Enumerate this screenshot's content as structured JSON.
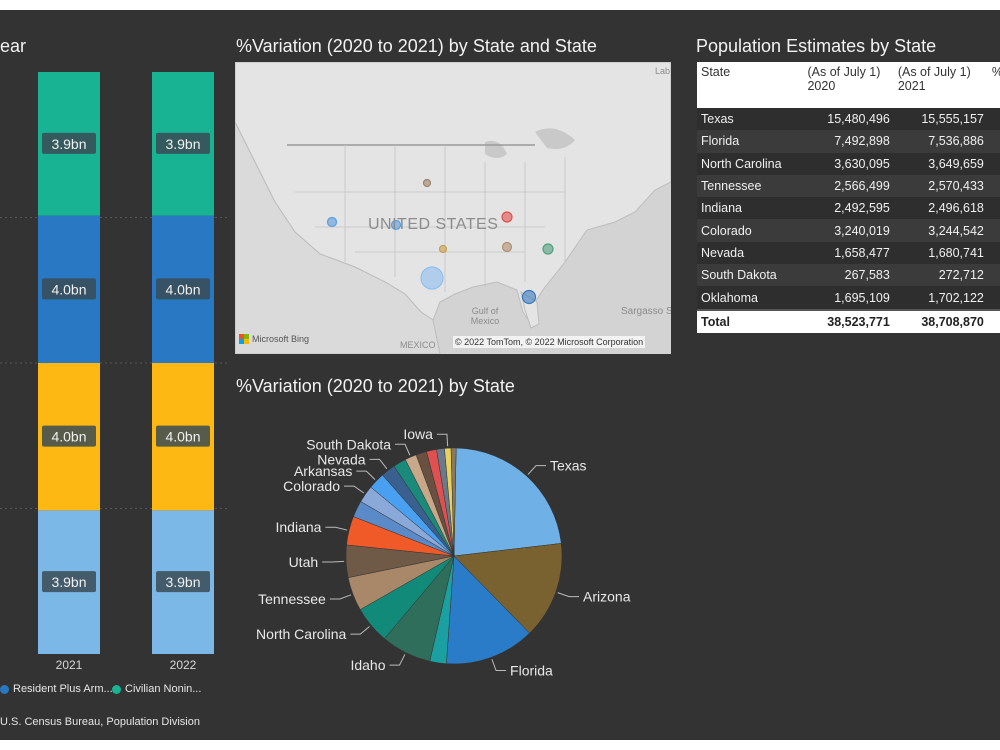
{
  "titles": {
    "bar": "ear",
    "map": "%Variation (2020 to 2021) by State and State",
    "table": "Population Estimates by State",
    "pie": "%Variation (2020 to 2021) by State"
  },
  "colors": {
    "segment_1": "#7bb8e8",
    "segment_2": "#fdb813",
    "segment_3": "#2878c3",
    "segment_4": "#18b393"
  },
  "bar_legend": [
    {
      "label": "Resident Plus Arm...",
      "color": "#2878c3"
    },
    {
      "label": "Civilian Nonin...",
      "color": "#18b393"
    }
  ],
  "source_text": "U.S. Census Bureau, Population Division",
  "map": {
    "country_label": "UNITED STATES",
    "labels": {
      "gulf": "Gulf of Mexico",
      "mexico": "MEXICO",
      "sargasso": "Sargasso S",
      "lab": "Lab"
    },
    "copyright": "© 2022 TomTom, © 2022 Microsoft Corporation",
    "bing": "Microsoft Bing",
    "bubbles": [
      {
        "color": "#5a9de0"
      },
      {
        "color": "#5a9de0"
      },
      {
        "color": "#a0826a"
      },
      {
        "color": "#e05050"
      },
      {
        "color": "#c8a050"
      },
      {
        "color": "#b09070"
      },
      {
        "color": "#50a080"
      },
      {
        "color": "#8ec0f0"
      },
      {
        "color": "#3a7ac0"
      }
    ]
  },
  "table": {
    "headers": [
      "State",
      "(As of July 1) 2020",
      "(As of July 1) 2021",
      "%"
    ],
    "rows": [
      {
        "state": "Texas",
        "y2020": "15,480,496",
        "y2021": "15,555,157"
      },
      {
        "state": "Florida",
        "y2020": "7,492,898",
        "y2021": "7,536,886"
      },
      {
        "state": "North Carolina",
        "y2020": "3,630,095",
        "y2021": "3,649,659"
      },
      {
        "state": "Tennessee",
        "y2020": "2,566,499",
        "y2021": "2,570,433"
      },
      {
        "state": "Indiana",
        "y2020": "2,492,595",
        "y2021": "2,496,618"
      },
      {
        "state": "Colorado",
        "y2020": "3,240,019",
        "y2021": "3,244,542"
      },
      {
        "state": "Nevada",
        "y2020": "1,658,477",
        "y2021": "1,680,741"
      },
      {
        "state": "South Dakota",
        "y2020": "267,583",
        "y2021": "272,712"
      },
      {
        "state": "Oklahoma",
        "y2020": "1,695,109",
        "y2021": "1,702,122"
      }
    ],
    "total": {
      "label": "Total",
      "y2020": "38,523,771",
      "y2021": "38,708,870"
    }
  },
  "chart_data": [
    {
      "type": "bar",
      "stacked": true,
      "title": "ear",
      "categories": [
        "2021",
        "2022"
      ],
      "series": [
        {
          "values": [
            3.9,
            3.9
          ],
          "labels": [
            "3.9bn",
            "3.9bn"
          ],
          "color": "#7bb8e8"
        },
        {
          "values": [
            4.0,
            4.0
          ],
          "labels": [
            "4.0bn",
            "4.0bn"
          ],
          "color": "#fdb813"
        },
        {
          "name": "Resident Plus Arm...",
          "values": [
            4.0,
            4.0
          ],
          "labels": [
            "4.0bn",
            "4.0bn"
          ],
          "color": "#2878c3"
        },
        {
          "name": "Civilian Nonin...",
          "values": [
            3.9,
            3.9
          ],
          "labels": [
            "3.9bn",
            "3.9bn"
          ],
          "color": "#18b393"
        }
      ],
      "ylim": [
        0,
        15.8
      ],
      "grid": true
    },
    {
      "type": "pie",
      "title": "%Variation (2020 to 2021) by State",
      "slices": [
        {
          "label": "Texas",
          "value": 21.2,
          "color": "#6fb0e6"
        },
        {
          "label": "Arizona",
          "value": 13.5,
          "color": "#7a6230"
        },
        {
          "label": "Florida",
          "value": 12.5,
          "color": "#2a7bc8"
        },
        {
          "label": "",
          "value": 2.3,
          "color": "#1aa0a0"
        },
        {
          "label": "Idaho",
          "value": 7.0,
          "color": "#2e6e5a"
        },
        {
          "label": "North Carolina",
          "value": 5.2,
          "color": "#128a7a"
        },
        {
          "label": "Tennessee",
          "value": 4.7,
          "color": "#a88868"
        },
        {
          "label": "Utah",
          "value": 4.5,
          "color": "#6e5a46"
        },
        {
          "label": "Indiana",
          "value": 4.0,
          "color": "#f05a28"
        },
        {
          "label": "",
          "value": 2.3,
          "color": "#5a8ac8"
        },
        {
          "label": "Colorado",
          "value": 2.4,
          "color": "#8aa8d8"
        },
        {
          "label": "Arkansas",
          "value": 2.3,
          "color": "#4aa0f0"
        },
        {
          "label": "Nevada",
          "value": 2.0,
          "color": "#3a6090"
        },
        {
          "label": "",
          "value": 1.8,
          "color": "#1a8a7a"
        },
        {
          "label": "South Dakota",
          "value": 1.6,
          "color": "#c8a888"
        },
        {
          "label": "",
          "value": 1.5,
          "color": "#6a5040"
        },
        {
          "label": "",
          "value": 1.4,
          "color": "#e05050"
        },
        {
          "label": "",
          "value": 1.1,
          "color": "#6a7a8a"
        },
        {
          "label": "Iowa",
          "value": 0.9,
          "color": "#e8d060"
        },
        {
          "label": "",
          "value": 0.7,
          "color": "#8a7a5a"
        }
      ]
    }
  ]
}
